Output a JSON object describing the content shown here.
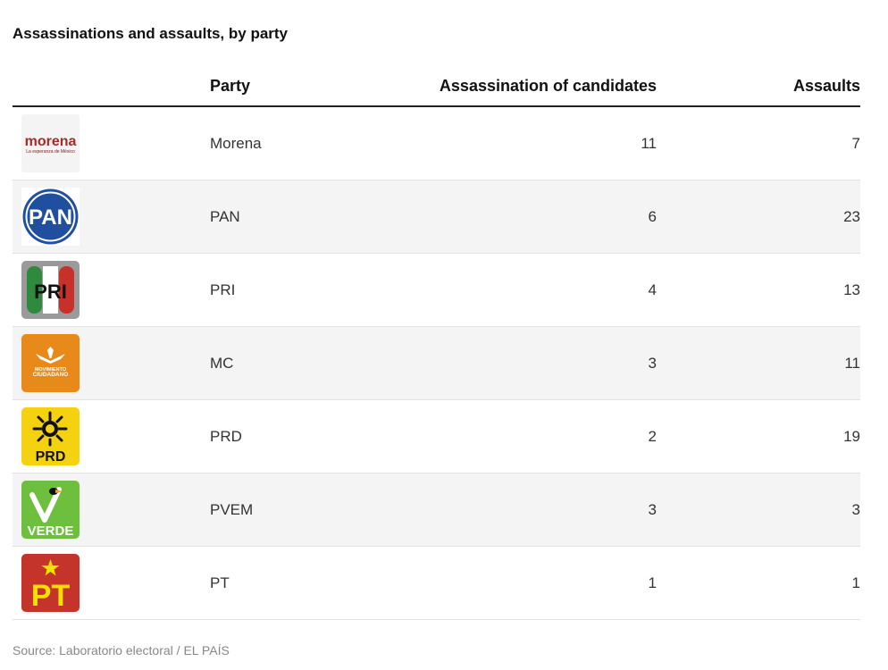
{
  "chart_data": {
    "type": "table",
    "title": "Assassinations and assaults, by party",
    "columns": [
      "",
      "Party",
      "Assassination of candidates",
      "Assaults"
    ],
    "rows": [
      {
        "logo": "morena-logo",
        "party": "Morena",
        "assassinations": "11",
        "assaults": "7"
      },
      {
        "logo": "pan-logo",
        "party": "PAN",
        "assassinations": "6",
        "assaults": "23"
      },
      {
        "logo": "pri-logo",
        "party": "PRI",
        "assassinations": "4",
        "assaults": "13"
      },
      {
        "logo": "mc-logo",
        "party": "MC",
        "assassinations": "3",
        "assaults": "11"
      },
      {
        "logo": "prd-logo",
        "party": "PRD",
        "assassinations": "2",
        "assaults": "19"
      },
      {
        "logo": "pvem-logo",
        "party": "PVEM",
        "assassinations": "3",
        "assaults": "3"
      },
      {
        "logo": "pt-logo",
        "party": "PT",
        "assassinations": "1",
        "assaults": "1"
      }
    ],
    "source": "Source: Laboratorio electoral / EL PAÍS"
  },
  "logo_text": {
    "morena": "morena",
    "morena_tagline": "La esperanza de México",
    "pan": "PAN",
    "pri": "PRI",
    "mc_line1": "MOVIMIENTO",
    "mc_line2": "CIUDADANO",
    "prd": "PRD",
    "pvem": "VERDE",
    "pt": "PT"
  },
  "colors": {
    "morena": "#a52a2a",
    "pan": "#1f4f9e",
    "pri_green": "#2e8b3e",
    "pri_red": "#c8312a",
    "mc": "#e88a1a",
    "prd": "#f4d20f",
    "pvem": "#6fbf3f",
    "pt": "#c4342a",
    "pt_yellow": "#f5e000"
  }
}
